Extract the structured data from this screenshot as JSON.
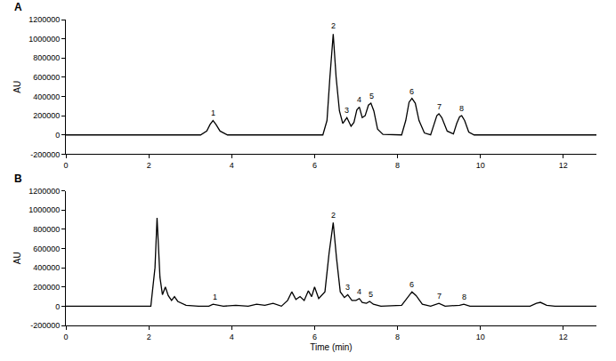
{
  "chart_data": [
    {
      "type": "line",
      "title": "A",
      "y_label": "AU",
      "color": "#000000",
      "xlim": [
        0,
        12.8
      ],
      "xticks": [
        0,
        2,
        4,
        6,
        8,
        10,
        12
      ],
      "ylim": [
        -200000,
        1200000
      ],
      "yticks": [
        -200000,
        0,
        200000,
        400000,
        600000,
        800000,
        1000000,
        1200000
      ],
      "x": [
        0,
        3.25,
        3.4,
        3.48,
        3.55,
        3.62,
        3.72,
        3.9,
        6.2,
        6.3,
        6.37,
        6.45,
        6.52,
        6.6,
        6.68,
        6.78,
        6.88,
        6.95,
        7.02,
        7.08,
        7.15,
        7.22,
        7.3,
        7.36,
        7.43,
        7.52,
        7.65,
        8.1,
        8.2,
        8.28,
        8.35,
        8.43,
        8.52,
        8.65,
        8.8,
        8.88,
        8.95,
        9.0,
        9.07,
        9.2,
        9.35,
        9.43,
        9.5,
        9.55,
        9.62,
        9.72,
        9.85,
        12.8
      ],
      "values": [
        0,
        0,
        40000,
        110000,
        150000,
        110000,
        40000,
        0,
        0,
        150000,
        600000,
        1050000,
        600000,
        250000,
        120000,
        180000,
        90000,
        130000,
        260000,
        290000,
        180000,
        200000,
        310000,
        330000,
        250000,
        60000,
        5000,
        0,
        150000,
        340000,
        380000,
        330000,
        150000,
        20000,
        0,
        100000,
        200000,
        220000,
        180000,
        40000,
        10000,
        120000,
        190000,
        200000,
        150000,
        30000,
        0,
        0
      ],
      "annotations": [
        {
          "text": "1",
          "x": 3.55,
          "y": 160000
        },
        {
          "text": "2",
          "x": 6.45,
          "y": 1070000
        },
        {
          "text": "3",
          "x": 6.78,
          "y": 190000
        },
        {
          "text": "4",
          "x": 7.08,
          "y": 300000
        },
        {
          "text": "5",
          "x": 7.38,
          "y": 340000
        },
        {
          "text": "6",
          "x": 8.35,
          "y": 390000
        },
        {
          "text": "7",
          "x": 9.0,
          "y": 230000
        },
        {
          "text": "8",
          "x": 9.55,
          "y": 210000
        }
      ]
    },
    {
      "type": "line",
      "title": "B",
      "y_label": "AU",
      "x_label": "Time (min)",
      "color": "#000000",
      "xlim": [
        0,
        12.8
      ],
      "xticks": [
        0,
        2,
        4,
        6,
        8,
        10,
        12
      ],
      "ylim": [
        -200000,
        1200000
      ],
      "yticks": [
        -200000,
        0,
        200000,
        400000,
        600000,
        800000,
        1000000,
        1200000
      ],
      "x": [
        0,
        2.05,
        2.15,
        2.2,
        2.27,
        2.33,
        2.4,
        2.47,
        2.55,
        2.62,
        2.7,
        2.8,
        2.9,
        3.2,
        3.45,
        3.55,
        3.65,
        3.8,
        4.1,
        4.4,
        4.6,
        4.8,
        5.0,
        5.2,
        5.35,
        5.45,
        5.55,
        5.65,
        5.75,
        5.85,
        5.93,
        6.0,
        6.1,
        6.25,
        6.35,
        6.45,
        6.53,
        6.62,
        6.72,
        6.8,
        6.9,
        7.0,
        7.08,
        7.15,
        7.25,
        7.33,
        7.42,
        7.6,
        8.1,
        8.25,
        8.35,
        8.45,
        8.6,
        8.8,
        8.95,
        9.0,
        9.15,
        9.5,
        9.6,
        9.75,
        11.2,
        11.35,
        11.45,
        11.6,
        11.8,
        12.8
      ],
      "values": [
        0,
        0,
        400000,
        920000,
        300000,
        120000,
        200000,
        110000,
        60000,
        100000,
        50000,
        30000,
        10000,
        0,
        0,
        20000,
        10000,
        0,
        10000,
        0,
        20000,
        10000,
        30000,
        0,
        60000,
        150000,
        70000,
        100000,
        60000,
        160000,
        100000,
        200000,
        80000,
        150000,
        550000,
        870000,
        500000,
        150000,
        90000,
        120000,
        60000,
        60000,
        80000,
        40000,
        30000,
        50000,
        20000,
        0,
        10000,
        100000,
        150000,
        110000,
        20000,
        0,
        20000,
        30000,
        0,
        10000,
        20000,
        0,
        0,
        30000,
        40000,
        10000,
        0,
        0
      ],
      "annotations": [
        {
          "text": "1",
          "x": 3.6,
          "y": 30000
        },
        {
          "text": "2",
          "x": 6.45,
          "y": 880000
        },
        {
          "text": "3",
          "x": 6.8,
          "y": 130000
        },
        {
          "text": "4",
          "x": 7.08,
          "y": 90000
        },
        {
          "text": "5",
          "x": 7.35,
          "y": 60000
        },
        {
          "text": "6",
          "x": 8.35,
          "y": 160000
        },
        {
          "text": "7",
          "x": 9.0,
          "y": 40000
        },
        {
          "text": "8",
          "x": 9.6,
          "y": 30000
        }
      ]
    }
  ]
}
